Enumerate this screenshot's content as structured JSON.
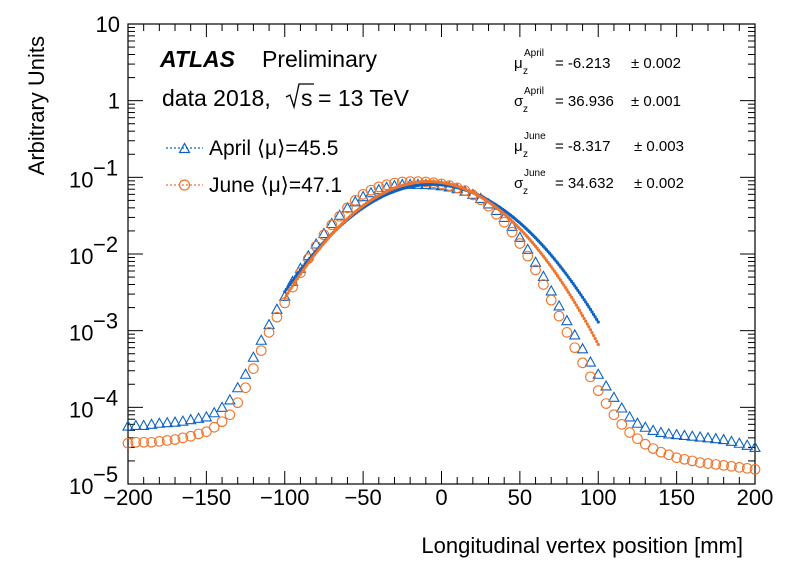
{
  "chart_data": {
    "type": "scatter",
    "title": "",
    "xlabel": "Longitudinal vertex position [mm]",
    "ylabel": "Arbitrary Units",
    "xlim": [
      -200,
      200
    ],
    "ylim": [
      1e-05,
      10
    ],
    "yscale": "log",
    "x_ticks": [
      -200,
      -150,
      -100,
      -50,
      0,
      50,
      100,
      150,
      200
    ],
    "x_tick_labels": [
      "−200",
      "−150",
      "−100",
      "−50",
      "0",
      "50",
      "100",
      "150",
      "200"
    ],
    "y_tick_labels": [
      {
        "value": 10,
        "base": "10",
        "exp": ""
      },
      {
        "value": 1,
        "base": "1",
        "exp": ""
      },
      {
        "value": 0.1,
        "base": "10",
        "exp": "−1"
      },
      {
        "value": 0.01,
        "base": "10",
        "exp": "−2"
      },
      {
        "value": 0.001,
        "base": "10",
        "exp": "−3"
      },
      {
        "value": 0.0001,
        "base": "10",
        "exp": "−4"
      },
      {
        "value": 1e-05,
        "base": "10",
        "exp": "−5"
      }
    ],
    "experiment": "ATLAS",
    "status": "Preliminary",
    "dataset": "data 2018,",
    "energy_prefix": "s",
    "energy_value": "= 13 TeV",
    "series": [
      {
        "name": "April",
        "legend_label": "April ⟨μ⟩=45.5",
        "marker": "open-triangle",
        "color": "#0c62c4",
        "fit": {
          "mean": -6.213,
          "sigma": 36.936,
          "amplitude": 0.081,
          "range": [
            -100,
            100
          ]
        },
        "x": [
          -200,
          -195,
          -190,
          -185,
          -180,
          -175,
          -170,
          -165,
          -160,
          -155,
          -150,
          -145,
          -140,
          -135,
          -130,
          -125,
          -120,
          -115,
          -110,
          -105,
          -100,
          -95,
          -90,
          -85,
          -80,
          -75,
          -70,
          -65,
          -60,
          -55,
          -50,
          -45,
          -40,
          -35,
          -30,
          -25,
          -20,
          -15,
          -10,
          -5,
          0,
          5,
          10,
          15,
          20,
          25,
          30,
          35,
          40,
          45,
          50,
          55,
          60,
          65,
          70,
          75,
          80,
          85,
          90,
          95,
          100,
          105,
          110,
          115,
          120,
          125,
          130,
          135,
          140,
          145,
          150,
          155,
          160,
          165,
          170,
          175,
          180,
          185,
          190,
          195,
          200
        ],
        "y": [
          5.7e-05,
          5.8e-05,
          5.8e-05,
          6e-05,
          6.2e-05,
          6.3e-05,
          6.4e-05,
          6.6e-05,
          6.9e-05,
          7.2e-05,
          7.5e-05,
          8.5e-05,
          0.0001,
          0.000125,
          0.00018,
          0.00027,
          0.00045,
          0.00075,
          0.0012,
          0.0019,
          0.0028,
          0.0044,
          0.0065,
          0.0095,
          0.0135,
          0.0185,
          0.025,
          0.032,
          0.04,
          0.048,
          0.056,
          0.063,
          0.069,
          0.074,
          0.078,
          0.0805,
          0.081,
          0.081,
          0.0805,
          0.0795,
          0.0775,
          0.075,
          0.071,
          0.066,
          0.06,
          0.053,
          0.045,
          0.037,
          0.03,
          0.023,
          0.0165,
          0.0115,
          0.0078,
          0.0051,
          0.0033,
          0.0021,
          0.00135,
          0.00088,
          0.00058,
          0.00039,
          0.00027,
          0.00019,
          0.000135,
          9.8e-05,
          7.5e-05,
          6.2e-05,
          5.5e-05,
          5e-05,
          4.7e-05,
          4.5e-05,
          4.4e-05,
          4.3e-05,
          4.2e-05,
          4.1e-05,
          4e-05,
          3.9e-05,
          3.8e-05,
          3.6e-05,
          3.4e-05,
          3.2e-05,
          3e-05
        ]
      },
      {
        "name": "June",
        "legend_label": "June ⟨μ⟩=47.1",
        "marker": "open-circle",
        "color": "#f0742a",
        "fit": {
          "mean": -8.317,
          "sigma": 34.632,
          "amplitude": 0.088,
          "range": [
            -100,
            100
          ]
        },
        "x": [
          -200,
          -195,
          -190,
          -185,
          -180,
          -175,
          -170,
          -165,
          -160,
          -155,
          -150,
          -145,
          -140,
          -135,
          -130,
          -125,
          -120,
          -115,
          -110,
          -105,
          -100,
          -95,
          -90,
          -85,
          -80,
          -75,
          -70,
          -65,
          -60,
          -55,
          -50,
          -45,
          -40,
          -35,
          -30,
          -25,
          -20,
          -15,
          -10,
          -5,
          0,
          5,
          10,
          15,
          20,
          25,
          30,
          35,
          40,
          45,
          50,
          55,
          60,
          65,
          70,
          75,
          80,
          85,
          90,
          95,
          100,
          105,
          110,
          115,
          120,
          125,
          130,
          135,
          140,
          145,
          150,
          155,
          160,
          165,
          170,
          175,
          180,
          185,
          190,
          195,
          200
        ],
        "y": [
          3.4e-05,
          3.5e-05,
          3.5e-05,
          3.5e-05,
          3.6e-05,
          3.7e-05,
          3.8e-05,
          4e-05,
          4.2e-05,
          4.5e-05,
          4.8e-05,
          5.5e-05,
          6.5e-05,
          8e-05,
          0.000115,
          0.00018,
          0.00032,
          0.00055,
          0.00095,
          0.0015,
          0.0023,
          0.0037,
          0.0057,
          0.0087,
          0.0126,
          0.0178,
          0.024,
          0.031,
          0.04,
          0.05,
          0.06,
          0.068,
          0.075,
          0.08,
          0.084,
          0.087,
          0.088,
          0.088,
          0.087,
          0.085,
          0.082,
          0.078,
          0.073,
          0.067,
          0.059,
          0.051,
          0.042,
          0.033,
          0.026,
          0.0193,
          0.0137,
          0.0094,
          0.0062,
          0.004,
          0.0025,
          0.00155,
          0.00095,
          0.0006,
          0.00038,
          0.00025,
          0.000165,
          0.000112,
          8e-05,
          6e-05,
          4.7e-05,
          3.9e-05,
          3.3e-05,
          2.9e-05,
          2.6e-05,
          2.4e-05,
          2.2e-05,
          2.1e-05,
          2e-05,
          1.9e-05,
          1.85e-05,
          1.8e-05,
          1.75e-05,
          1.7e-05,
          1.65e-05,
          1.6e-05,
          1.55e-05
        ]
      }
    ],
    "fit_stats": [
      {
        "symbol": "μ",
        "sub": "z",
        "sup": "April",
        "value": "= -6.213",
        "error": "± 0.002"
      },
      {
        "symbol": "σ",
        "sub": "z",
        "sup": "April",
        "value": "= 36.936",
        "error": "± 0.001"
      },
      {
        "symbol": "μ",
        "sub": "z",
        "sup": "June",
        "value": "= -8.317",
        "error": "± 0.003"
      },
      {
        "symbol": "σ",
        "sub": "z",
        "sup": "June",
        "value": "= 34.632",
        "error": "± 0.002"
      }
    ]
  }
}
